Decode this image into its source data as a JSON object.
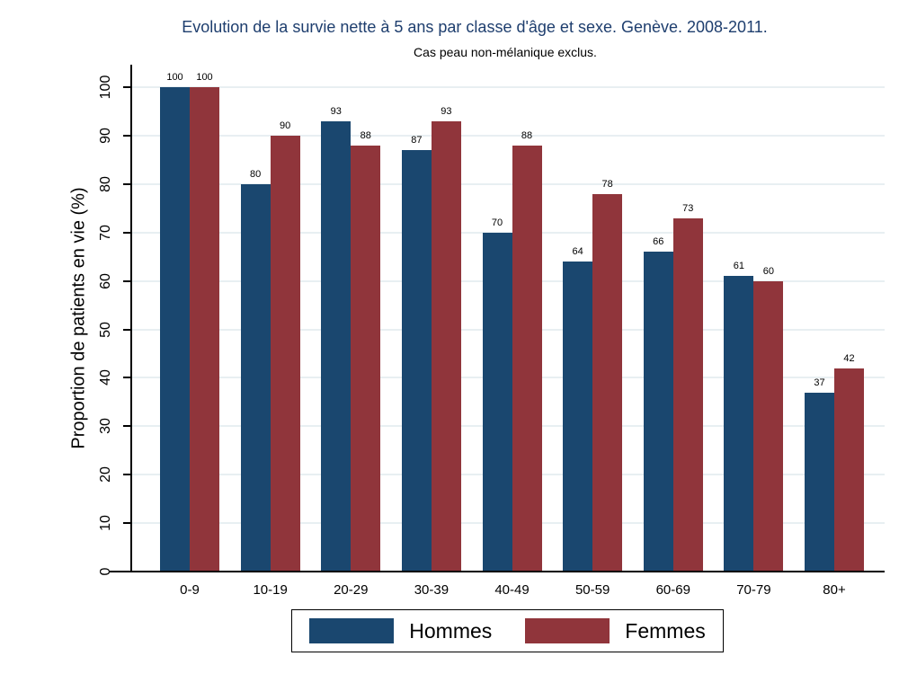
{
  "chart_data": {
    "type": "bar",
    "title": "Evolution de la survie nette à 5 ans par classe d'âge et sexe. Genève. 2008-2011.",
    "subtitle": "Cas peau non-mélanique exclus.",
    "categories": [
      "0-9",
      "10-19",
      "20-29",
      "30-39",
      "40-49",
      "50-59",
      "60-69",
      "70-79",
      "80+"
    ],
    "series": [
      {
        "name": "Hommes",
        "color": "#1A476F",
        "values": [
          100,
          80,
          93,
          87,
          70,
          64,
          66,
          61,
          37
        ]
      },
      {
        "name": "Femmes",
        "color": "#90353B",
        "values": [
          100,
          90,
          88,
          93,
          88,
          78,
          73,
          60,
          42
        ]
      }
    ],
    "xlabel": "",
    "ylabel": "Proportion de patients en vie (%)",
    "ylim": [
      0,
      100
    ],
    "yticks": [
      0,
      10,
      20,
      30,
      40,
      50,
      60,
      70,
      80,
      90,
      100
    ],
    "ytick_label_angle_deg": 90,
    "grid": true,
    "bar_value_labels": true,
    "legend_position": "bottom",
    "styles": {
      "title_color": "#1E3E6E",
      "grid_color": "#E8EFF2",
      "axis_color": "#000000",
      "text_color": "#000000",
      "background": "#FFFFFF"
    }
  }
}
